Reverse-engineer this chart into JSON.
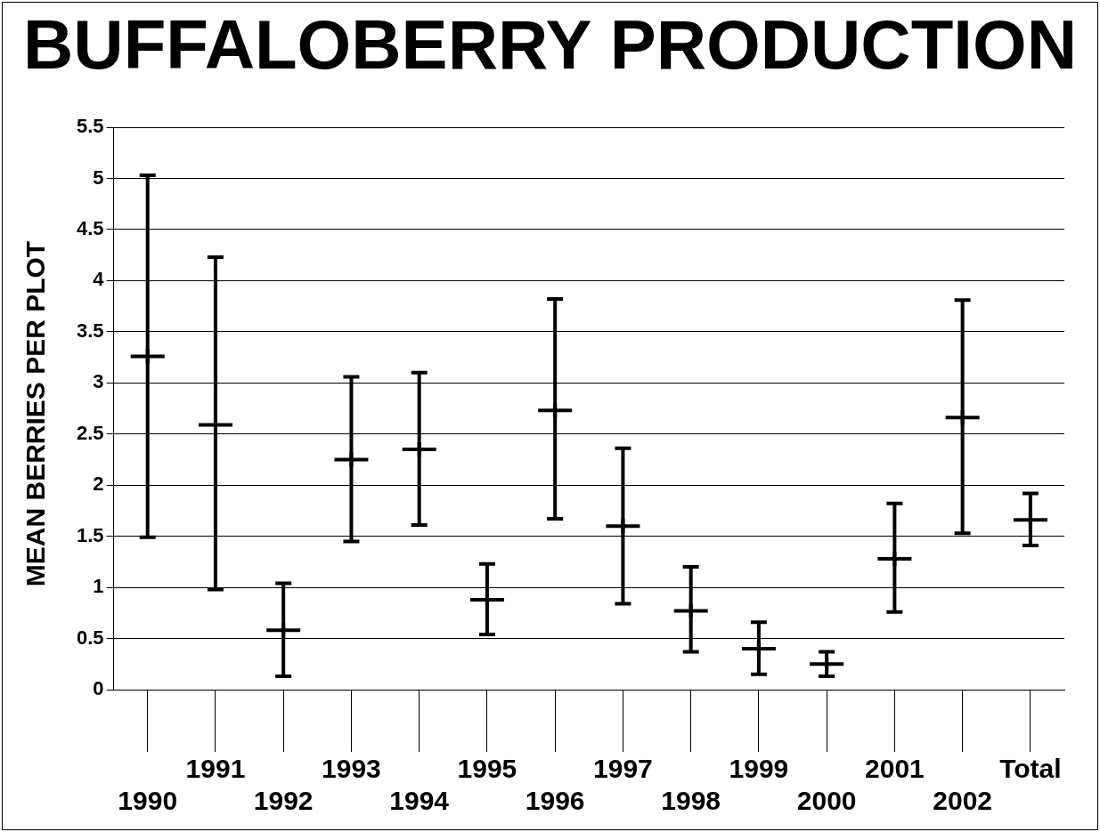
{
  "chart_data": {
    "type": "scatter",
    "title": "BUFFALOBERRY PRODUCTION",
    "ylabel": "MEAN BERRIES PER PLOT",
    "categories": [
      "1990",
      "1991",
      "1992",
      "1993",
      "1994",
      "1995",
      "1996",
      "1997",
      "1998",
      "1999",
      "2000",
      "2001",
      "2002",
      "Total"
    ],
    "series": [
      {
        "color": "#000000",
        "values": [
          3.26,
          2.59,
          0.58,
          2.25,
          2.35,
          0.88,
          2.73,
          1.6,
          0.77,
          0.4,
          0.25,
          1.28,
          2.66,
          1.66
        ],
        "errors": [
          [
            1.49,
            5.03
          ],
          [
            0.98,
            4.23
          ],
          [
            0.13,
            1.04
          ],
          [
            1.45,
            3.06
          ],
          [
            1.61,
            3.1
          ],
          [
            0.54,
            1.23
          ],
          [
            1.67,
            3.82
          ],
          [
            0.84,
            2.36
          ],
          [
            0.37,
            1.2
          ],
          [
            0.15,
            0.66
          ],
          [
            0.13,
            0.37
          ],
          [
            0.76,
            1.82
          ],
          [
            1.53,
            3.81
          ],
          [
            1.41,
            1.92
          ]
        ]
      }
    ],
    "ylim": [
      0,
      5.5
    ],
    "yticks": [
      0,
      0.5,
      1,
      1.5,
      2,
      2.5,
      3,
      3.5,
      4,
      4.5,
      5,
      5.5
    ],
    "grid": "y",
    "legend": false,
    "marker": "cross"
  }
}
